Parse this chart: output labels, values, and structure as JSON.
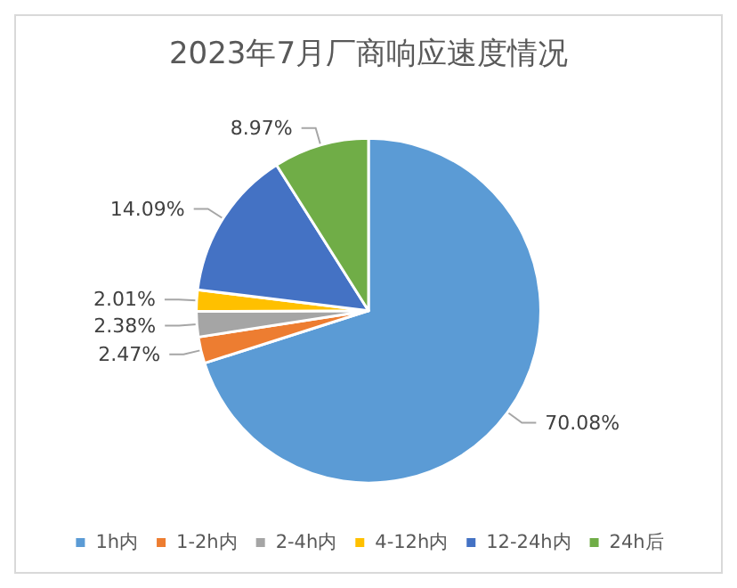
{
  "chart_data": {
    "type": "pie",
    "title": "2023年7月厂商响应速度情况",
    "categories": [
      "1h内",
      "1-2h内",
      "2-4h内",
      "4-12h内",
      "12-24h内",
      "24h后"
    ],
    "values": [
      70.08,
      2.47,
      2.38,
      2.01,
      14.09,
      8.97
    ],
    "value_labels": [
      "70.08%",
      "2.47%",
      "2.38%",
      "2.01%",
      "14.09%",
      "8.97%"
    ],
    "colors": [
      "#5b9bd5",
      "#ed7d31",
      "#a5a5a5",
      "#ffc000",
      "#4472c4",
      "#70ad47"
    ],
    "legend": "bottom"
  }
}
